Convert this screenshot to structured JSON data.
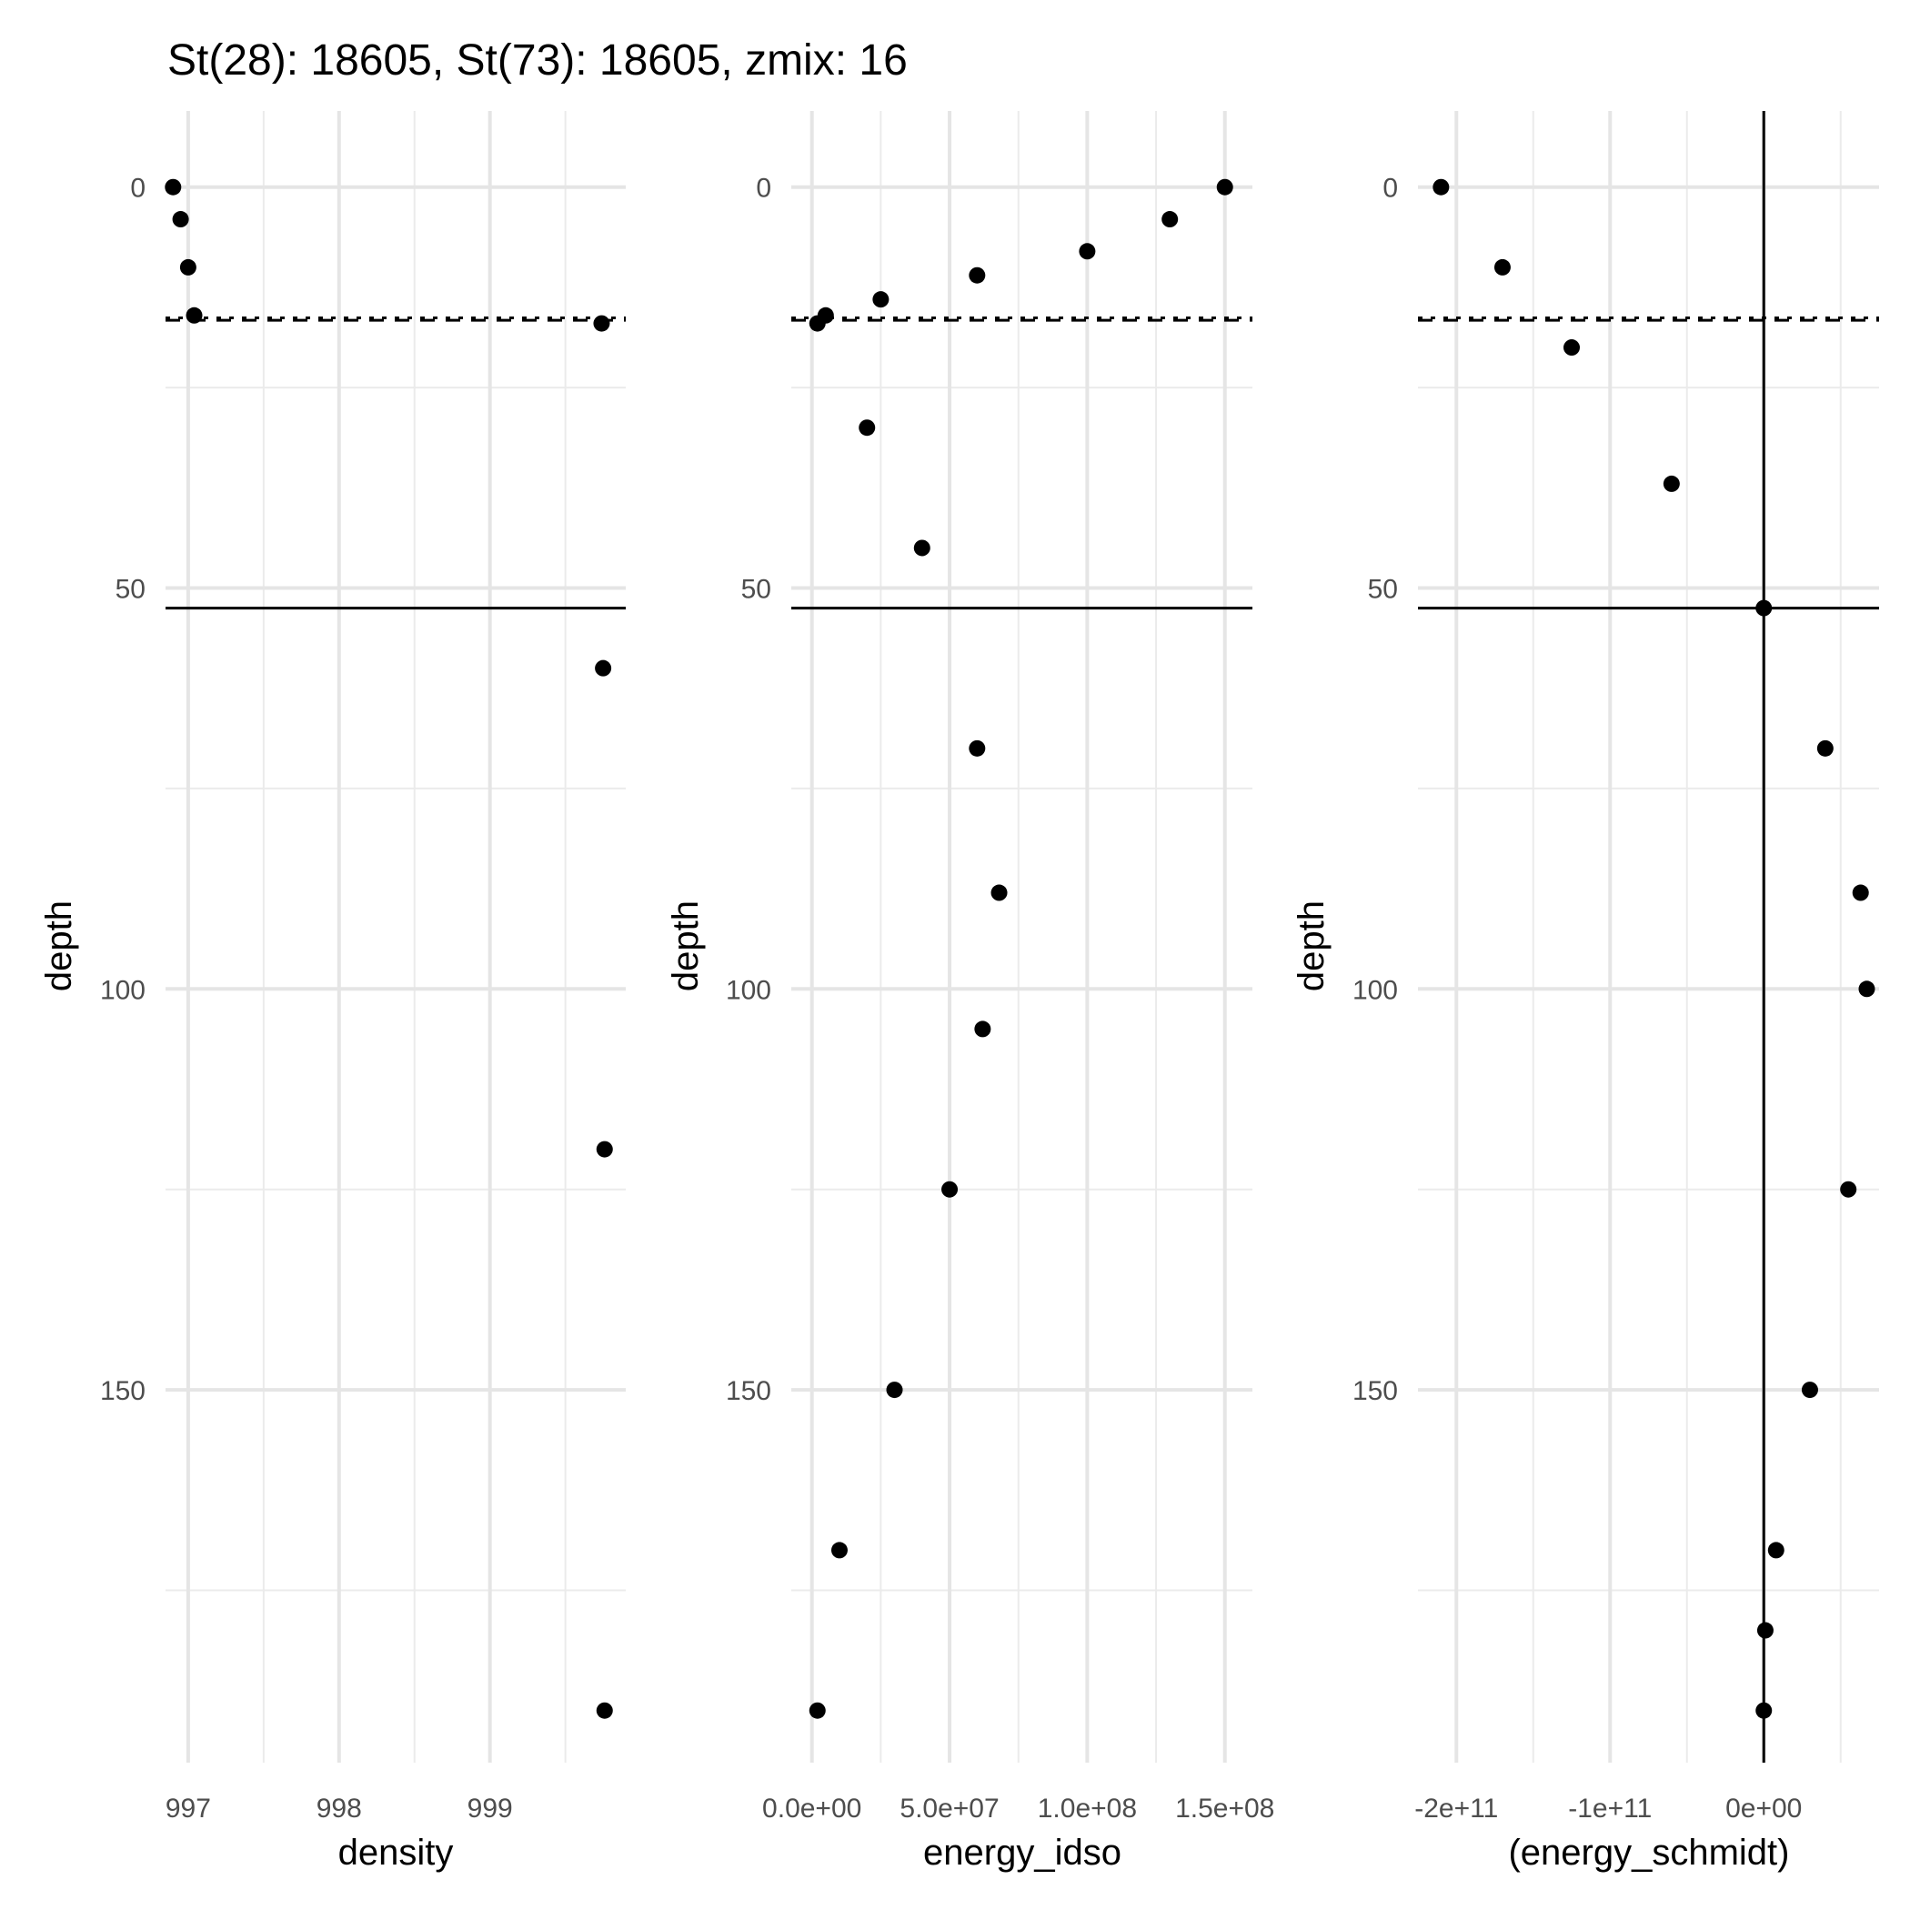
{
  "chart_data": [
    {
      "type": "scatter",
      "title": "St(28): 18605, St(73): 18605, zmix: 16",
      "xlabel": "density",
      "ylabel": "depth",
      "y_reversed": true,
      "xlim": [
        996.85,
        999.9
      ],
      "ylim": [
        -9.5,
        196.5
      ],
      "x_ticks": [
        997,
        998,
        999
      ],
      "x_tick_labels": [
        "997",
        "998",
        "999"
      ],
      "y_ticks": [
        0,
        50,
        100,
        150
      ],
      "y_tick_labels": [
        "0",
        "50",
        "100",
        "150"
      ],
      "grid": true,
      "hlines": [
        {
          "y": 16.3,
          "style": "dotted"
        },
        {
          "y": 16.6,
          "style": "dashed"
        },
        {
          "y": 52.5,
          "style": "solid"
        }
      ],
      "vlines": [],
      "series": [
        {
          "points": [
            [
              996.9,
              0
            ],
            [
              996.95,
              4
            ],
            [
              997.0,
              10
            ],
            [
              997.04,
              16
            ],
            [
              999.74,
              17
            ],
            [
              999.75,
              60
            ],
            [
              999.76,
              120
            ],
            [
              999.76,
              190
            ]
          ]
        }
      ]
    },
    {
      "type": "scatter",
      "xlabel": "energy_idso",
      "ylabel": "depth",
      "y_reversed": true,
      "xlim": [
        -7500000,
        160000000
      ],
      "ylim": [
        -9.5,
        196.5
      ],
      "x_ticks": [
        0,
        50000000,
        100000000,
        150000000
      ],
      "x_tick_labels": [
        "0.0e+00",
        "5.0e+07",
        "1.0e+08",
        "1.5e+08"
      ],
      "y_ticks": [
        0,
        50,
        100,
        150
      ],
      "y_tick_labels": [
        "0",
        "50",
        "100",
        "150"
      ],
      "grid": true,
      "hlines": [
        {
          "y": 16.3,
          "style": "dotted"
        },
        {
          "y": 16.6,
          "style": "dashed"
        },
        {
          "y": 52.5,
          "style": "solid"
        }
      ],
      "vlines": [],
      "series": [
        {
          "points": [
            [
              150000000,
              0
            ],
            [
              130000000,
              4
            ],
            [
              100000000,
              8
            ],
            [
              60000000,
              11
            ],
            [
              25000000,
              14
            ],
            [
              5000000,
              16
            ],
            [
              2000000,
              17
            ],
            [
              20000000,
              30
            ],
            [
              40000000,
              45
            ],
            [
              60000000,
              70
            ],
            [
              68000000,
              88
            ],
            [
              62000000,
              105
            ],
            [
              50000000,
              125
            ],
            [
              30000000,
              150
            ],
            [
              10000000,
              170
            ],
            [
              2000000,
              190
            ]
          ]
        }
      ]
    },
    {
      "type": "scatter",
      "xlabel": "(energy_schmidt)",
      "ylabel": "depth",
      "y_reversed": true,
      "xlim": [
        -225000000000,
        75000000000
      ],
      "ylim": [
        -9.5,
        196.5
      ],
      "x_ticks": [
        -200000000000,
        -100000000000,
        0
      ],
      "x_tick_labels": [
        "-2e+11",
        "-1e+11",
        "0e+00"
      ],
      "y_ticks": [
        0,
        50,
        100,
        150
      ],
      "y_tick_labels": [
        "0",
        "50",
        "100",
        "150"
      ],
      "grid": true,
      "hlines": [
        {
          "y": 16.3,
          "style": "dotted"
        },
        {
          "y": 16.6,
          "style": "dashed"
        },
        {
          "y": 52.5,
          "style": "solid"
        }
      ],
      "vlines": [
        {
          "x": 0,
          "style": "solid"
        }
      ],
      "series": [
        {
          "points": [
            [
              -210000000000,
              0
            ],
            [
              -170000000000,
              10
            ],
            [
              -125000000000,
              20
            ],
            [
              -60000000000,
              37
            ],
            [
              0,
              52.5
            ],
            [
              40000000000,
              70
            ],
            [
              63000000000,
              88
            ],
            [
              67000000000,
              100
            ],
            [
              55000000000,
              125
            ],
            [
              30000000000,
              150
            ],
            [
              8000000000,
              170
            ],
            [
              1000000000,
              180
            ],
            [
              0,
              190
            ]
          ]
        }
      ]
    }
  ]
}
